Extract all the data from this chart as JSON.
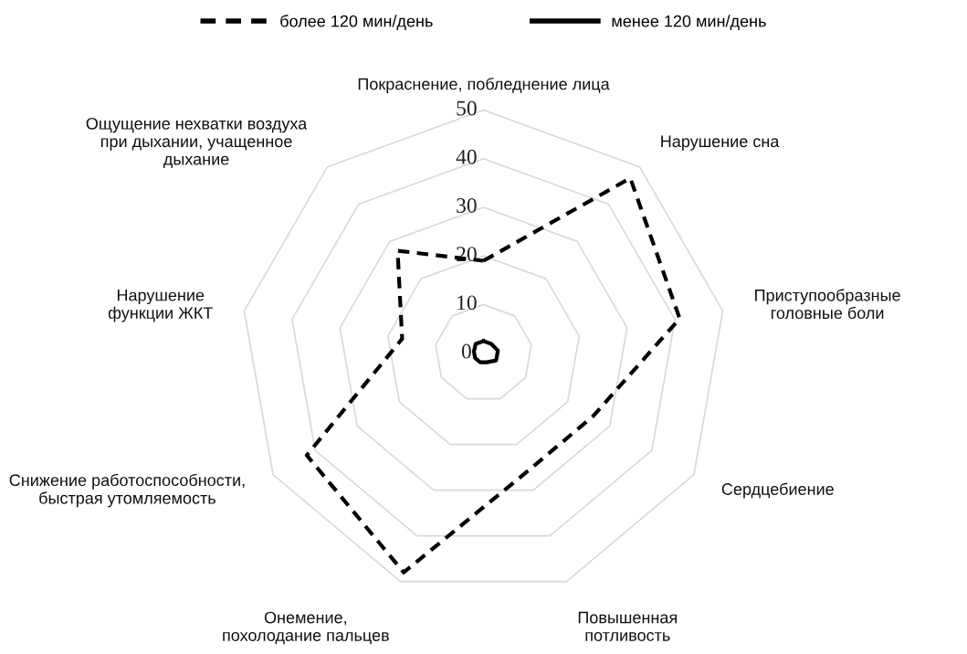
{
  "chart_data": {
    "type": "radar",
    "categories": [
      "Покраснение, побледнение лица",
      "Нарушение сна",
      "Приступообразные\nголовные боли",
      "Сердцебиение",
      "Повышенная\nпотливость",
      "Онемение,\nпохолодание пальцев",
      "Снижение работоспособности,\nбыстрая утомляемость",
      "Нарушение\nфункции ЖКТ",
      "Ощущение нехватки воздуха\nпри дыхании, учащенное\nдыхание"
    ],
    "series": [
      {
        "name": "более 120 мин/день",
        "color": "#000000",
        "line_style": "dashed",
        "values": [
          19,
          47,
          41,
          26,
          26,
          48,
          42,
          17,
          27.5
        ]
      },
      {
        "name": "менее 120 мин/день",
        "color": "#000000",
        "line_style": "solid",
        "values": [
          2.5,
          2.5,
          3,
          3,
          2,
          2,
          2,
          2,
          2.5
        ]
      }
    ],
    "ylim": [
      0,
      50
    ],
    "yticks": [
      0,
      10,
      20,
      30,
      40,
      50
    ],
    "grid": true,
    "legend": "top"
  }
}
